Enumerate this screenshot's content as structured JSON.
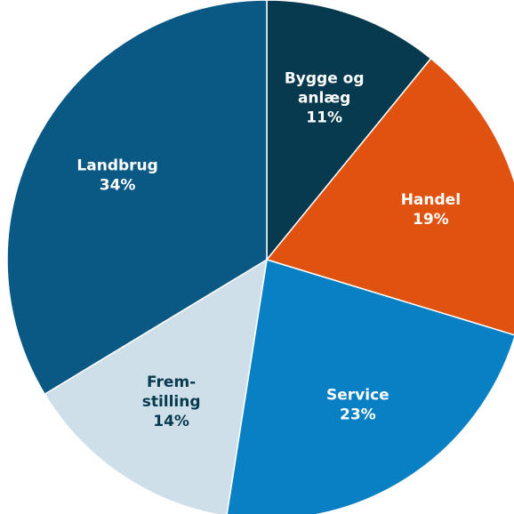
{
  "chart_data": {
    "type": "pie",
    "title": "",
    "slices": [
      {
        "lines": [
          "Bygge og",
          "anlæg"
        ],
        "percent_label": "11%",
        "value": 11,
        "color": "#073a4e",
        "label_color": "#ffffff"
      },
      {
        "lines": [
          "Handel"
        ],
        "percent_label": "19%",
        "value": 19,
        "color": "#e05210",
        "label_color": "#ffffff"
      },
      {
        "lines": [
          "Service"
        ],
        "percent_label": "23%",
        "value": 23,
        "color": "#0a80c4",
        "label_color": "#ffffff"
      },
      {
        "lines": [
          "Frem-",
          "stilling"
        ],
        "percent_label": "14%",
        "value": 14,
        "color": "#cedfe9",
        "label_color": "#073a4e"
      },
      {
        "lines": [
          "Landbrug"
        ],
        "percent_label": "34%",
        "value": 34,
        "color": "#0a5985",
        "label_color": "#ffffff"
      }
    ],
    "legend": "none",
    "start": "top, clockwise"
  }
}
